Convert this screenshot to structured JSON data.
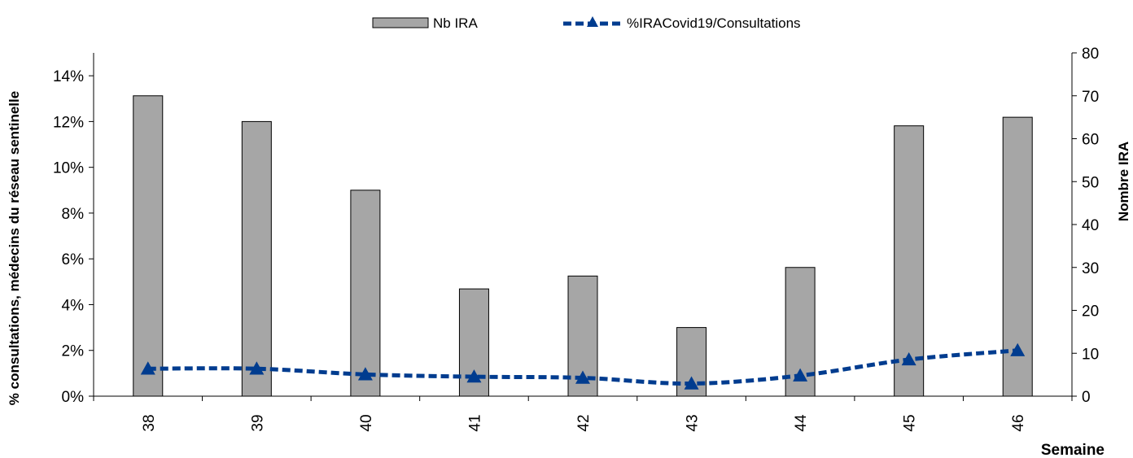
{
  "chart_data": {
    "type": "bar",
    "categories": [
      "38",
      "39",
      "40",
      "41",
      "42",
      "43",
      "44",
      "45",
      "46"
    ],
    "series": [
      {
        "name": "Nb IRA",
        "type": "bar",
        "axis": "right",
        "values": [
          70,
          64,
          48,
          25,
          28,
          16,
          30,
          63,
          65
        ],
        "color": "#a6a6a6"
      },
      {
        "name": "%IRACovid19/Consultations",
        "type": "line",
        "axis": "left",
        "values": [
          1.2,
          1.2,
          0.95,
          0.85,
          0.8,
          0.55,
          0.9,
          1.6,
          2.0
        ],
        "color": "#003c8f",
        "line_style": "dashed",
        "marker": "triangle"
      }
    ],
    "y_left": {
      "label": "% consultations, médecins du réseau sentinelle",
      "ylim": [
        0,
        15
      ],
      "ticks": [
        0,
        2,
        4,
        6,
        8,
        10,
        12,
        14
      ],
      "tick_labels": [
        "0%",
        "2%",
        "4%",
        "6%",
        "8%",
        "10%",
        "12%",
        "14%"
      ]
    },
    "y_right": {
      "label": "Nombre IRA",
      "ylim": [
        0,
        80
      ],
      "ticks": [
        0,
        10,
        20,
        30,
        40,
        50,
        60,
        70,
        80
      ],
      "tick_labels": [
        "0",
        "10",
        "20",
        "30",
        "40",
        "50",
        "60",
        "70",
        "80"
      ]
    },
    "xlabel": "Semaine",
    "grid": false,
    "legend_position": "top-center"
  }
}
